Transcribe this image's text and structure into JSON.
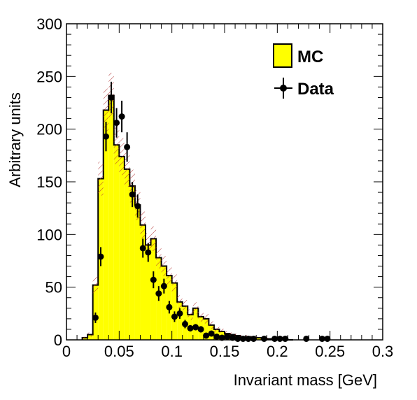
{
  "chart_data": {
    "type": "histogram",
    "xlabel": "Invariant mass [GeV]",
    "ylabel": "Arbitrary units",
    "xlim": [
      0,
      0.3
    ],
    "ylim": [
      0,
      300
    ],
    "xticks": [
      "0",
      "0.05",
      "0.1",
      "0.15",
      "0.2",
      "0.25",
      "0.3"
    ],
    "yticks": [
      "0",
      "50",
      "100",
      "150",
      "200",
      "250",
      "300"
    ],
    "bin_width": 0.005,
    "grid": false,
    "legend_position": "top-right",
    "colors": {
      "mc_fill": "#ffff00",
      "mc_line": "#000000",
      "mc_error_hatch": "#b03030",
      "data_marker": "#000000"
    },
    "legend": [
      {
        "label": "MC",
        "style": "filled-box"
      },
      {
        "label": "Data",
        "style": "marker-with-error-bar"
      }
    ],
    "series": [
      {
        "name": "MC",
        "kind": "filled-step-histogram",
        "x_bin_low": [
          0.015,
          0.02,
          0.025,
          0.03,
          0.035,
          0.04,
          0.045,
          0.05,
          0.055,
          0.06,
          0.065,
          0.07,
          0.075,
          0.08,
          0.085,
          0.09,
          0.095,
          0.1,
          0.105,
          0.11,
          0.115,
          0.12,
          0.125,
          0.13,
          0.135,
          0.14,
          0.145,
          0.15,
          0.155,
          0.16,
          0.165,
          0.17,
          0.175,
          0.18,
          0.185,
          0.19,
          0.195,
          0.2,
          0.205,
          0.21
        ],
        "values": [
          2,
          5,
          52,
          153,
          218,
          232,
          185,
          174,
          162,
          146,
          128,
          109,
          90,
          96,
          78,
          70,
          61,
          54,
          36,
          32,
          24,
          30,
          22,
          20,
          14,
          10,
          8,
          6,
          5,
          4,
          3,
          3,
          2,
          2,
          1,
          1,
          1,
          1,
          1,
          0
        ]
      },
      {
        "name": "Data",
        "kind": "points-with-errors",
        "x": [
          0.0275,
          0.0325,
          0.0375,
          0.0425,
          0.0475,
          0.0525,
          0.0575,
          0.0625,
          0.0675,
          0.0725,
          0.0775,
          0.0825,
          0.0875,
          0.0925,
          0.0975,
          0.1025,
          0.1075,
          0.1125,
          0.1175,
          0.1225,
          0.1275,
          0.1325,
          0.1375,
          0.1425,
          0.1475,
          0.1525,
          0.1575,
          0.1625,
          0.1675,
          0.1725,
          0.1775,
          0.1875,
          0.1975,
          0.2025,
          0.2075,
          0.2275,
          0.2425,
          0.2475
        ],
        "y": [
          21,
          79,
          193,
          230,
          206,
          212,
          183,
          138,
          127,
          87,
          83,
          57,
          44,
          51,
          31,
          22,
          25,
          15,
          11,
          12,
          10,
          4,
          6,
          3,
          2,
          3,
          2,
          1,
          1,
          1,
          1,
          1,
          1,
          1,
          1,
          1,
          1,
          1
        ],
        "yerr": [
          5,
          9,
          14,
          15,
          14,
          15,
          14,
          12,
          11,
          9,
          9,
          8,
          7,
          7,
          6,
          5,
          5,
          4,
          3,
          3,
          3,
          2,
          2,
          2,
          1,
          2,
          1,
          1,
          1,
          1,
          1,
          1,
          1,
          1,
          1,
          1,
          1,
          1
        ]
      }
    ]
  }
}
